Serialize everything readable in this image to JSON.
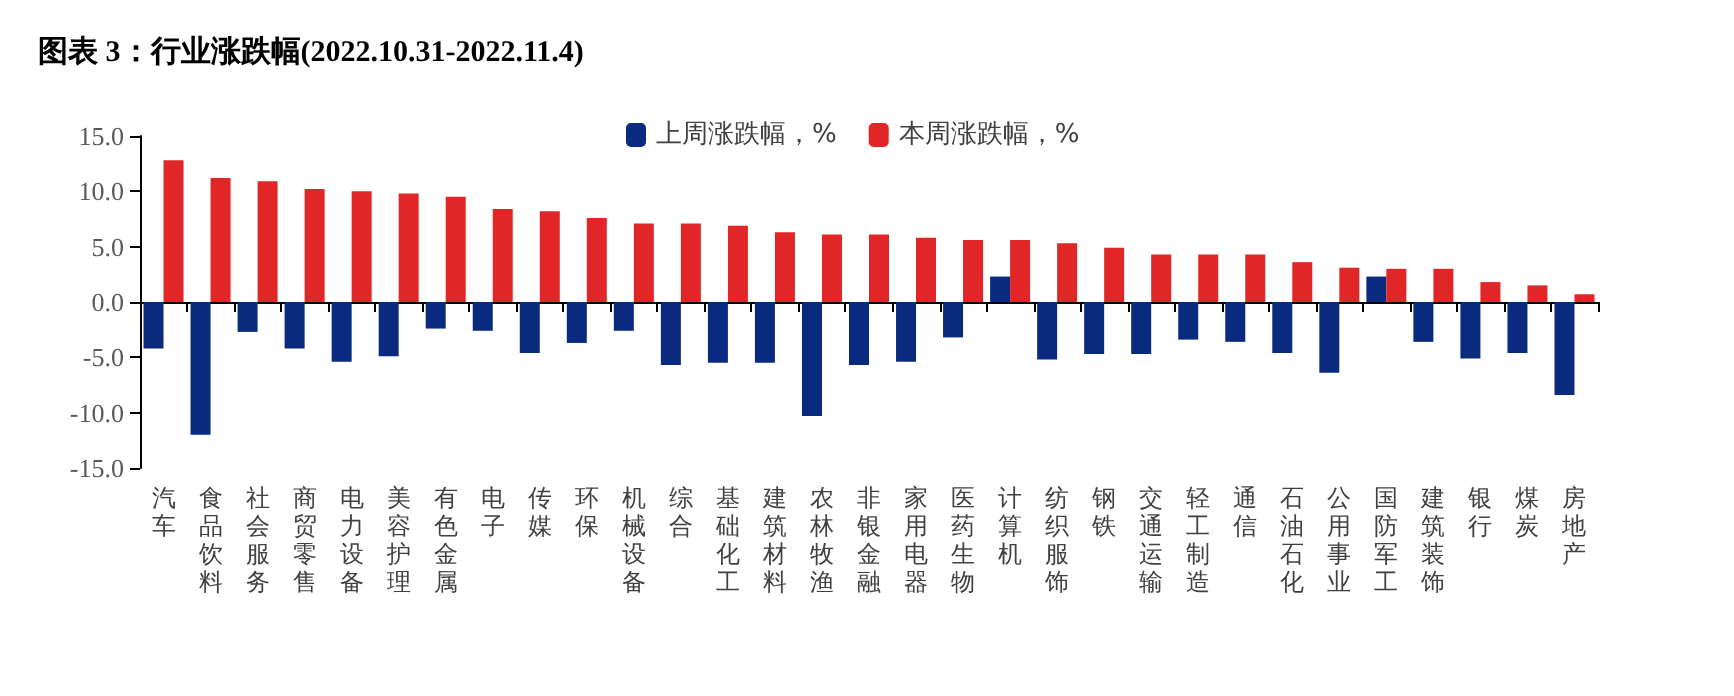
{
  "chart_data": {
    "type": "bar",
    "title": "图表 3：行业涨跌幅(2022.10.31-2022.11.4)",
    "categories": [
      "汽车",
      "食品饮料",
      "社会服务",
      "商贸零售",
      "电力设备",
      "美容护理",
      "有色金属",
      "电子",
      "传媒",
      "环保",
      "机械设备",
      "综合",
      "基础化工",
      "建筑材料",
      "农林牧渔",
      "非银金融",
      "家用电器",
      "医药生物",
      "计算机",
      "纺织服饰",
      "钢铁",
      "交通运输",
      "轻工制造",
      "通信",
      "石油石化",
      "公用事业",
      "国防军工",
      "建筑装饰",
      "银行",
      "煤炭",
      "房地产"
    ],
    "series": [
      {
        "name": "上周涨跌幅，%",
        "color": "#0a2a7f",
        "values": [
          -4.2,
          -12.0,
          -2.7,
          -4.2,
          -5.4,
          -4.9,
          -2.4,
          -2.6,
          -4.6,
          -3.7,
          -2.6,
          -5.7,
          -5.5,
          -5.5,
          -10.3,
          -5.7,
          -5.4,
          -3.2,
          2.3,
          -5.2,
          -4.7,
          -4.7,
          -3.4,
          -3.6,
          -4.6,
          -6.4,
          2.3,
          -3.6,
          -5.1,
          -4.6,
          -8.4
        ]
      },
      {
        "name": "本周涨跌幅，%",
        "color": "#e02626",
        "values": [
          12.8,
          11.2,
          10.9,
          10.2,
          10.0,
          9.8,
          9.5,
          8.4,
          8.2,
          7.6,
          7.1,
          7.1,
          6.9,
          6.3,
          6.1,
          6.1,
          5.8,
          5.6,
          5.6,
          5.3,
          4.9,
          4.3,
          4.3,
          4.3,
          3.6,
          3.1,
          3.0,
          3.0,
          1.8,
          1.5,
          0.7
        ]
      }
    ],
    "ylim": [
      -15,
      15
    ],
    "yticks": [
      {
        "value": -15,
        "label": "-15.0"
      },
      {
        "value": -10,
        "label": "-10.0"
      },
      {
        "value": -5,
        "label": "-5.0"
      },
      {
        "value": 0,
        "label": "0.0"
      },
      {
        "value": 5,
        "label": "5.0"
      },
      {
        "value": 10,
        "label": "10.0"
      },
      {
        "value": 15,
        "label": "15.0"
      }
    ],
    "legend": "top"
  }
}
